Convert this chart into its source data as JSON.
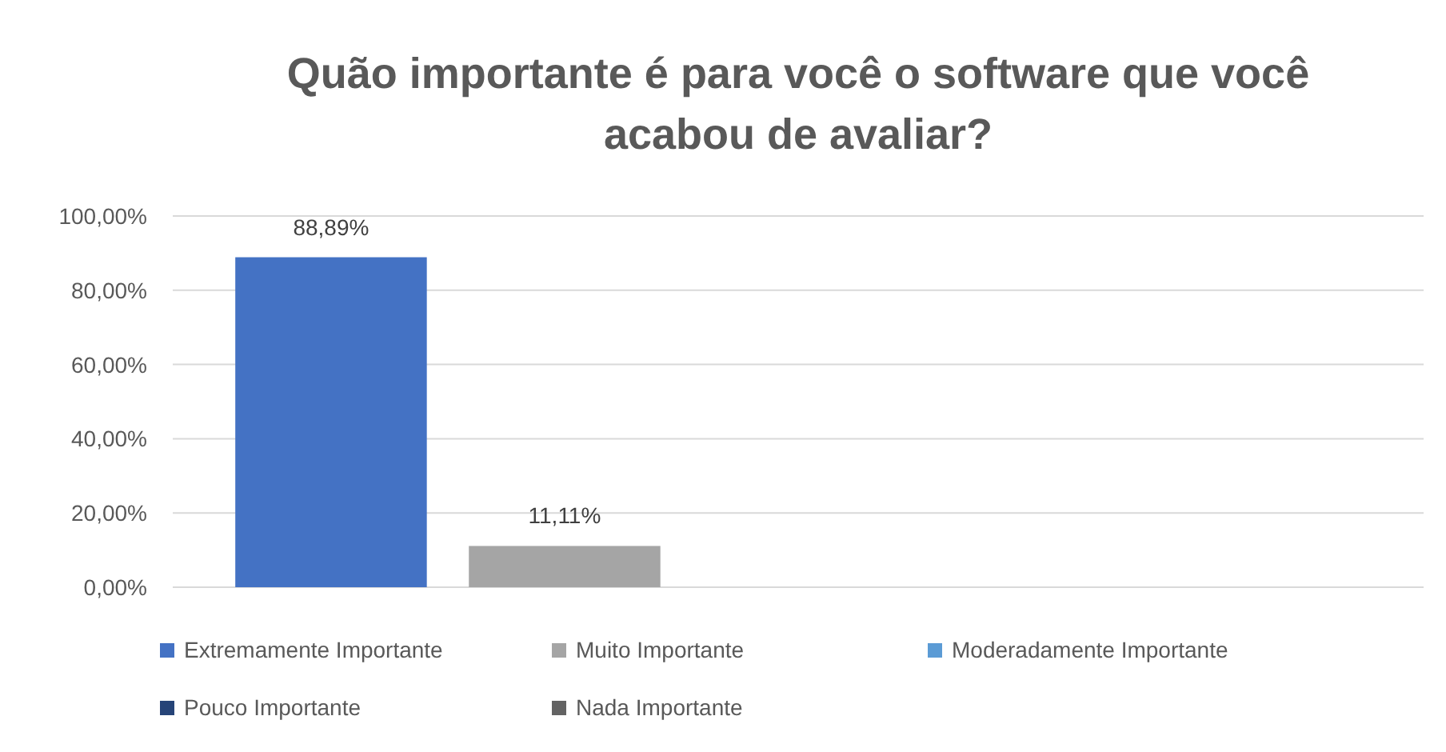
{
  "chart_data": {
    "type": "bar",
    "title": "Quão importante é para você o software que você acabou de avaliar?",
    "categories": [
      null
    ],
    "series": [
      {
        "name": "Extremamente Importante",
        "color": "#4472c4",
        "values": [
          88.89
        ],
        "value_labels": [
          "88,89%"
        ]
      },
      {
        "name": "Muito Importante",
        "color": "#a5a5a5",
        "values": [
          11.11
        ],
        "value_labels": [
          "11,11%"
        ]
      },
      {
        "name": "Moderadamente Importante",
        "color": "#5b9bd5",
        "values": [
          null
        ]
      },
      {
        "name": "Pouco Importante",
        "color": "#264478",
        "values": [
          null
        ]
      },
      {
        "name": "Nada Importante",
        "color": "#636363",
        "values": [
          null
        ]
      }
    ],
    "ylim": [
      0,
      100
    ],
    "yticks": [
      {
        "value": 0,
        "label": "0,00%"
      },
      {
        "value": 20,
        "label": "20,00%"
      },
      {
        "value": 40,
        "label": "40,00%"
      },
      {
        "value": 60,
        "label": "60,00%"
      },
      {
        "value": 80,
        "label": "80,00%"
      },
      {
        "value": 100,
        "label": "100,00%"
      }
    ],
    "grid": "y",
    "legend": "bottom"
  }
}
